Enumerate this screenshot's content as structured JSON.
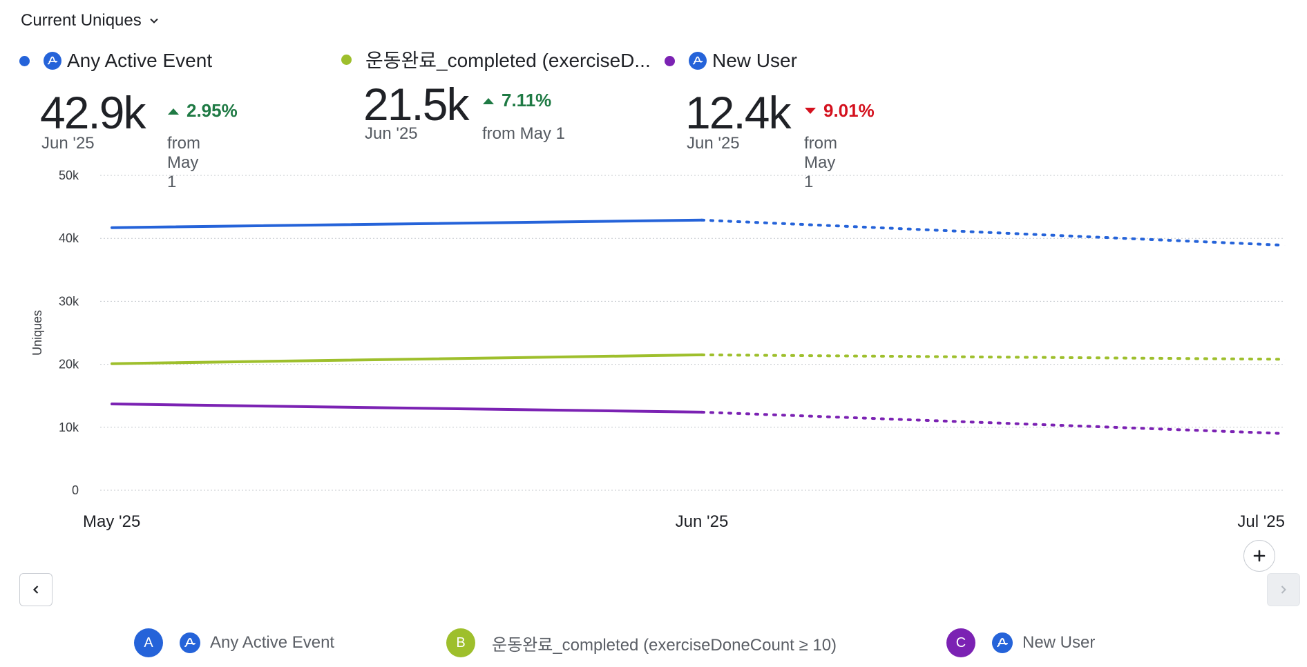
{
  "header": {
    "metric_label": "Current Uniques"
  },
  "colors": {
    "blue": "#2563d9",
    "green": "#9ebf2c",
    "purple": "#7b22b3",
    "up": "#1f7a44",
    "down": "#d4111e"
  },
  "summaries": [
    {
      "name": "Any Active Event",
      "value": "42.9k",
      "period": "Jun '25",
      "change": "2.95%",
      "direction": "up",
      "from": "from May 1"
    },
    {
      "name": "운동완료_completed (exerciseD...",
      "value": "21.5k",
      "period": "Jun '25",
      "change": "7.11%",
      "direction": "up",
      "from": "from May 1"
    },
    {
      "name": "New User",
      "value": "12.4k",
      "period": "Jun '25",
      "change": "9.01%",
      "direction": "down",
      "from": "from May 1"
    }
  ],
  "chart_data": {
    "type": "line",
    "ylabel": "Uniques",
    "ylim": [
      0,
      50000
    ],
    "y_ticks": [
      0,
      10000,
      20000,
      30000,
      40000,
      50000
    ],
    "y_tick_labels": [
      "0",
      "10k",
      "20k",
      "30k",
      "40k",
      "50k"
    ],
    "categories": [
      "May '25",
      "Jun '25",
      "Jul '25"
    ],
    "grid": true,
    "series": [
      {
        "name": "Any Active Event",
        "color": "#2563d9",
        "values": [
          41700,
          42900,
          38900
        ],
        "projected_from_index": 1
      },
      {
        "name": "운동완료_completed (exerciseDoneCount ≥ 10)",
        "color": "#9ebf2c",
        "values": [
          20100,
          21500,
          20800
        ],
        "projected_from_index": 1
      },
      {
        "name": "New User",
        "color": "#7b22b3",
        "values": [
          13700,
          12400,
          9000
        ],
        "projected_from_index": 1
      }
    ]
  },
  "legend": [
    {
      "letter": "A",
      "label": "Any Active Event"
    },
    {
      "letter": "B",
      "label": "운동완료_completed (exerciseDoneCount ≥ 10)"
    },
    {
      "letter": "C",
      "label": "New User"
    }
  ]
}
